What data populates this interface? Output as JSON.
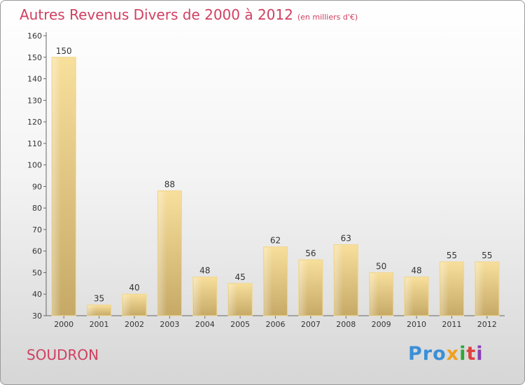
{
  "header": {
    "title": "Autres Revenus Divers de 2000 à 2012",
    "unit": "(en milliers d'€)"
  },
  "footer": {
    "commune": "SOUDRON",
    "logo": [
      "Pro",
      "x",
      "i",
      "t",
      "i"
    ]
  },
  "colors": {
    "title": "#d04060",
    "bar_light": "#f7dc98",
    "bar_dark": "#c9ad6a"
  },
  "chart_data": {
    "type": "bar",
    "title": "Autres Revenus Divers de 2000 à 2012",
    "xlabel": "",
    "ylabel": "",
    "categories": [
      "2000",
      "2001",
      "2002",
      "2003",
      "2004",
      "2005",
      "2006",
      "2007",
      "2008",
      "2009",
      "2010",
      "2011",
      "2012"
    ],
    "values": [
      150,
      35,
      40,
      88,
      48,
      45,
      62,
      56,
      63,
      50,
      48,
      55,
      55
    ],
    "ylim": [
      30,
      160
    ],
    "yticks": [
      30,
      40,
      50,
      60,
      70,
      80,
      90,
      100,
      110,
      120,
      130,
      140,
      150,
      160
    ],
    "grid": false,
    "legend": "none"
  }
}
